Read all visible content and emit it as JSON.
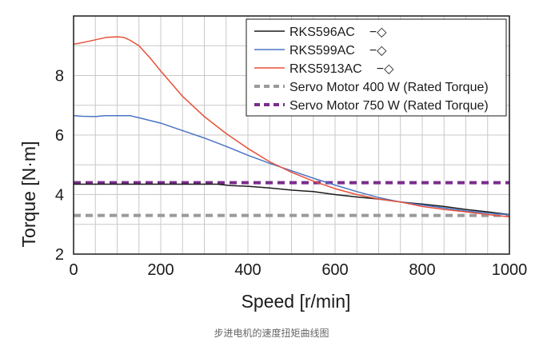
{
  "chart_data": {
    "type": "line",
    "title": "",
    "xlabel": "Speed [r/min]",
    "ylabel": "Torque [N·m]",
    "xlim": [
      0,
      1000
    ],
    "ylim": [
      2,
      10
    ],
    "xticks": [
      "0",
      "200",
      "400",
      "600",
      "800",
      "1000"
    ],
    "yticks": [
      "2",
      "4",
      "6",
      "8"
    ],
    "grid": true,
    "legend_position": "top-right",
    "series": [
      {
        "name": "RKS596AC",
        "suffix": "−◇",
        "color": "#1a1a1a",
        "dashed": false,
        "x": [
          0,
          50,
          100,
          150,
          200,
          250,
          300,
          330,
          360,
          400,
          450,
          500,
          550,
          600,
          650,
          700,
          750,
          800,
          850,
          900,
          950,
          1000
        ],
        "y": [
          4.35,
          4.35,
          4.35,
          4.35,
          4.35,
          4.35,
          4.35,
          4.35,
          4.3,
          4.28,
          4.22,
          4.15,
          4.1,
          4.0,
          3.92,
          3.85,
          3.75,
          3.68,
          3.6,
          3.5,
          3.42,
          3.33
        ]
      },
      {
        "name": "RKS599AC",
        "suffix": "−◇",
        "color": "#4a74c4",
        "dashed": false,
        "x": [
          0,
          20,
          50,
          70,
          100,
          130,
          150,
          200,
          250,
          300,
          350,
          400,
          450,
          500,
          550,
          600,
          650,
          700,
          750,
          800,
          850,
          900,
          950,
          1000
        ],
        "y": [
          6.65,
          6.63,
          6.62,
          6.65,
          6.65,
          6.65,
          6.58,
          6.4,
          6.15,
          5.9,
          5.62,
          5.32,
          5.05,
          4.8,
          4.55,
          4.32,
          4.1,
          3.9,
          3.75,
          3.65,
          3.55,
          3.45,
          3.38,
          3.32
        ]
      },
      {
        "name": "RKS5913AC",
        "suffix": "−◇",
        "color": "#e8503a",
        "dashed": false,
        "x": [
          0,
          25,
          50,
          75,
          100,
          115,
          130,
          150,
          175,
          200,
          250,
          300,
          350,
          400,
          450,
          500,
          550,
          600,
          650,
          700,
          750,
          800,
          850,
          900,
          950,
          1000
        ],
        "y": [
          9.05,
          9.12,
          9.2,
          9.28,
          9.3,
          9.28,
          9.18,
          9.0,
          8.6,
          8.15,
          7.3,
          6.62,
          6.05,
          5.55,
          5.1,
          4.75,
          4.45,
          4.2,
          4.0,
          3.85,
          3.75,
          3.6,
          3.5,
          3.42,
          3.33,
          3.25
        ]
      },
      {
        "name": "Servo Motor 400 W (Rated Torque)",
        "suffix": "",
        "color": "#9a9a9a",
        "dashed": true,
        "x": [
          0,
          1000
        ],
        "y": [
          3.3,
          3.3
        ]
      },
      {
        "name": "Servo Motor 750 W (Rated Torque)",
        "suffix": "",
        "color": "#7a2c8c",
        "dashed": true,
        "x": [
          0,
          1000
        ],
        "y": [
          4.4,
          4.4
        ]
      }
    ]
  },
  "caption": "步进电机的速度扭矩曲线图"
}
